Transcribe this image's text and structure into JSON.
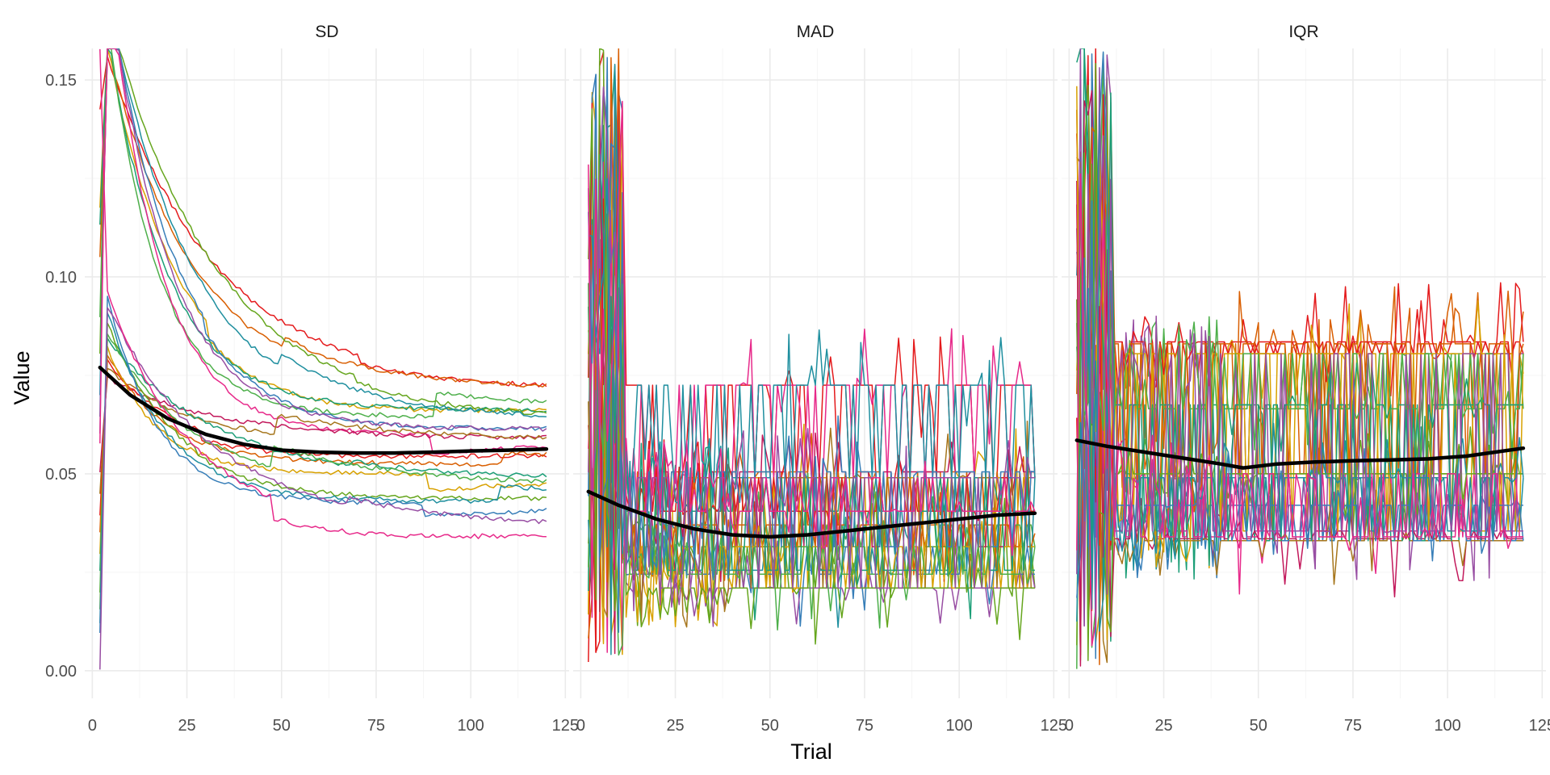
{
  "chart_data": {
    "type": "line",
    "layout": "faceted",
    "xlabel": "Trial",
    "ylabel": "Value",
    "xlim": [
      -2,
      126
    ],
    "ylim": [
      -0.007,
      0.158
    ],
    "x_ticks": [
      0,
      25,
      50,
      75,
      100,
      125
    ],
    "y_ticks": [
      0.0,
      0.05,
      0.1,
      0.15
    ],
    "x_tick_labels": [
      "0",
      "25",
      "50",
      "75",
      "100",
      "125"
    ],
    "y_tick_labels": [
      "0.00",
      "0.05",
      "0.10",
      "0.15"
    ],
    "grid": true,
    "legend": "none",
    "palette": [
      "#e41a1c",
      "#d95f02",
      "#d8a100",
      "#1b9e77",
      "#4daf4a",
      "#66a61e",
      "#1f8f9f",
      "#377eb8",
      "#984ea3",
      "#e7298a",
      "#c2185b",
      "#a6761d"
    ],
    "trend_color": "#000000",
    "n_series": 22,
    "x_end": 120,
    "panels": [
      {
        "label": "SD",
        "trend": {
          "x": [
            2,
            10,
            20,
            30,
            40,
            50,
            60,
            70,
            80,
            90,
            100,
            110,
            120
          ],
          "y": [
            0.077,
            0.07,
            0.064,
            0.06,
            0.0575,
            0.056,
            0.0555,
            0.0553,
            0.0553,
            0.0555,
            0.0558,
            0.056,
            0.0563
          ]
        },
        "end_values": [
          0.072,
          0.071,
          0.067,
          0.066,
          0.0645,
          0.064,
          0.063,
          0.062,
          0.061,
          0.06,
          0.059,
          0.0575,
          0.055,
          0.0525,
          0.05,
          0.0485,
          0.046,
          0.044,
          0.043,
          0.0425,
          0.036,
          0.0355
        ],
        "start_values": [
          0.142,
          0.105,
          0.118,
          0.113,
          0.09,
          0.08,
          0.07,
          0.065,
          0.06,
          0.058,
          0.05,
          0.045,
          0.04,
          0.035,
          0.03,
          0.025,
          0.02,
          0.015,
          0.012,
          0.01,
          0.0,
          0.158
        ]
      },
      {
        "label": "MAD",
        "trend": {
          "x": [
            2,
            10,
            20,
            30,
            40,
            50,
            60,
            70,
            80,
            90,
            100,
            110,
            120
          ],
          "y": [
            0.0455,
            0.042,
            0.0385,
            0.036,
            0.0345,
            0.034,
            0.0345,
            0.0355,
            0.0365,
            0.0375,
            0.0385,
            0.0395,
            0.04
          ]
        },
        "levels": [
          0.0725,
          0.0505,
          0.049,
          0.0405,
          0.037,
          0.0315,
          0.0255,
          0.0245,
          0.021
        ]
      },
      {
        "label": "IQR",
        "trend": {
          "x": [
            2,
            10,
            20,
            30,
            40,
            46,
            55,
            65,
            75,
            85,
            95,
            105,
            120
          ],
          "y": [
            0.0585,
            0.057,
            0.0555,
            0.054,
            0.0525,
            0.0515,
            0.0525,
            0.053,
            0.0533,
            0.0535,
            0.0538,
            0.0545,
            0.0565
          ]
        },
        "levels": [
          0.0835,
          0.083,
          0.0805,
          0.0675,
          0.0665,
          0.05,
          0.049,
          0.042,
          0.0355,
          0.034,
          0.0335,
          0.033
        ]
      }
    ]
  }
}
